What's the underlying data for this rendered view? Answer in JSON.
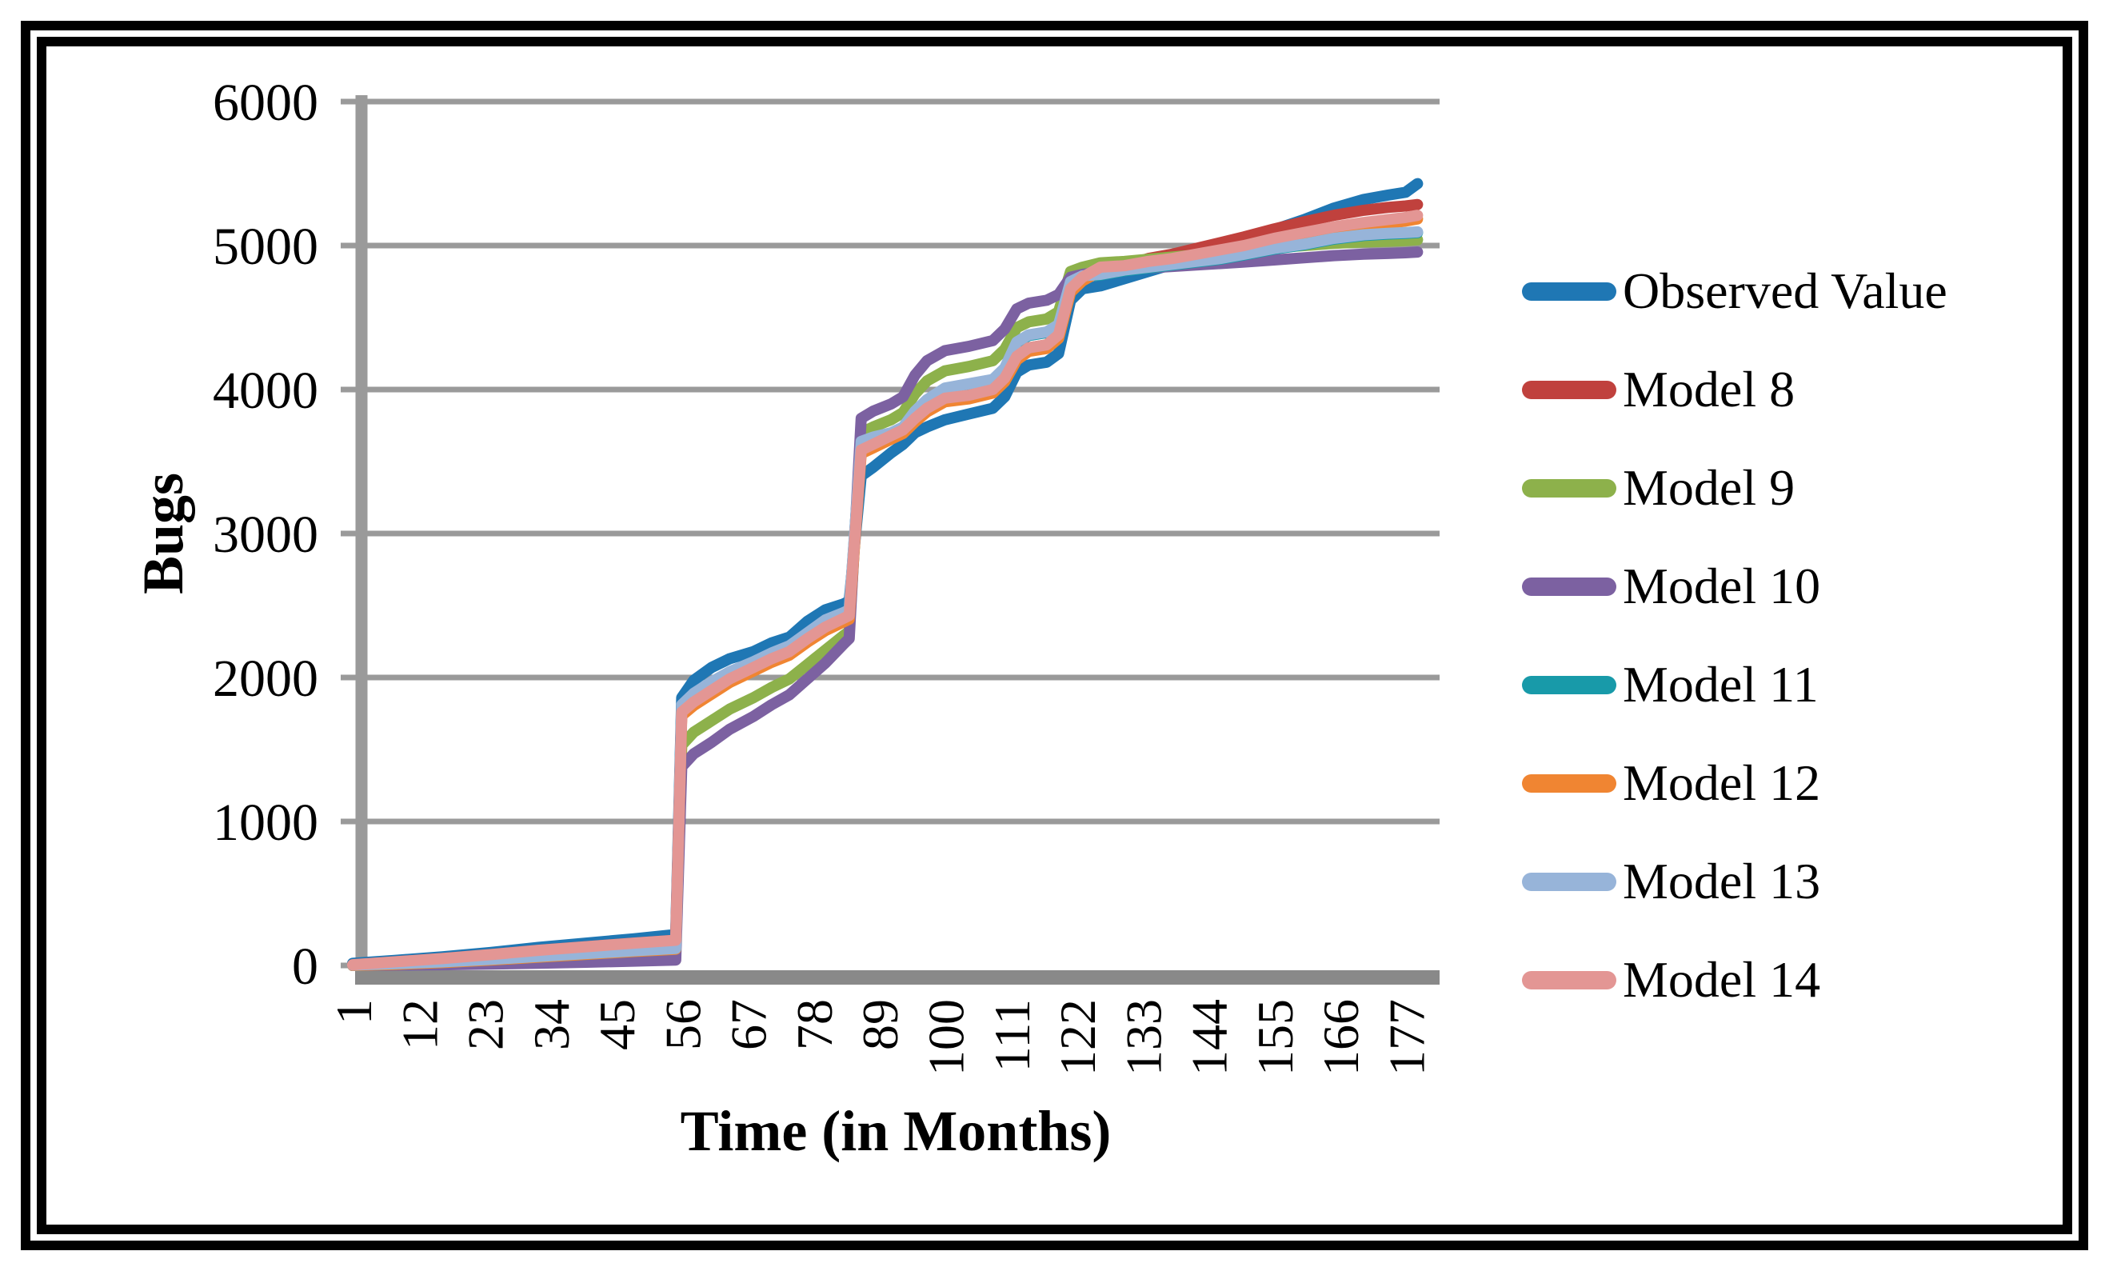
{
  "chart_data": {
    "type": "line",
    "title": "",
    "xlabel": "Time (in Months)",
    "ylabel": "Bugs",
    "x_ticks": [
      1,
      12,
      23,
      34,
      45,
      56,
      67,
      78,
      89,
      100,
      111,
      122,
      133,
      144,
      155,
      166,
      177
    ],
    "y_ticks": [
      0,
      1000,
      2000,
      3000,
      4000,
      5000,
      6000
    ],
    "xlim": [
      1,
      180
    ],
    "ylim": [
      0,
      6000
    ],
    "grid": "horizontal-only",
    "legend_position": "right",
    "colors": {
      "gridline": "#9a9a9a",
      "y_axis_line": "#9a9a9a",
      "x_axis_bar": "#898989",
      "text": "#000000"
    },
    "months": [
      1,
      8,
      16,
      24,
      32,
      40,
      48,
      55,
      56,
      58,
      61,
      64,
      68,
      71,
      74,
      77,
      80,
      83,
      84,
      86,
      88,
      91,
      93,
      95,
      97,
      100,
      104,
      108,
      110,
      112,
      114,
      117,
      119,
      121,
      123,
      126,
      130,
      134,
      138,
      142,
      146,
      150,
      155,
      160,
      165,
      170,
      174,
      177,
      179
    ],
    "series": [
      {
        "name": "Observed Value",
        "color": "#1f77b4",
        "values": [
          15,
          35,
          60,
          90,
          125,
          155,
          185,
          215,
          1860,
          1980,
          2070,
          2130,
          2180,
          2240,
          2280,
          2390,
          2470,
          2510,
          2530,
          3400,
          3460,
          3560,
          3620,
          3700,
          3740,
          3790,
          3830,
          3870,
          3950,
          4120,
          4170,
          4190,
          4250,
          4620,
          4700,
          4720,
          4770,
          4820,
          4870,
          4940,
          4990,
          5040,
          5110,
          5180,
          5260,
          5320,
          5350,
          5370,
          5430
        ]
      },
      {
        "name": "Model 8",
        "color": "#c0413d",
        "values": [
          5,
          25,
          48,
          75,
          105,
          130,
          155,
          175,
          1760,
          1830,
          1910,
          1990,
          2070,
          2130,
          2180,
          2270,
          2350,
          2410,
          2430,
          3580,
          3620,
          3680,
          3720,
          3800,
          3870,
          3940,
          3960,
          4000,
          4080,
          4230,
          4290,
          4310,
          4380,
          4700,
          4780,
          4850,
          4860,
          4910,
          4940,
          4980,
          5020,
          5060,
          5115,
          5165,
          5210,
          5245,
          5265,
          5275,
          5285
        ]
      },
      {
        "name": "Model 9",
        "color": "#8db14b",
        "values": [
          2,
          10,
          22,
          38,
          58,
          78,
          98,
          115,
          1530,
          1620,
          1700,
          1780,
          1860,
          1930,
          1990,
          2090,
          2190,
          2290,
          2320,
          3700,
          3740,
          3790,
          3840,
          3970,
          4060,
          4130,
          4160,
          4200,
          4280,
          4430,
          4470,
          4490,
          4540,
          4820,
          4850,
          4880,
          4890,
          4905,
          4920,
          4935,
          4950,
          4965,
          4985,
          5000,
          5015,
          5025,
          5030,
          5035,
          5040
        ]
      },
      {
        "name": "Model 10",
        "color": "#7c61a1",
        "values": [
          0,
          2,
          5,
          10,
          15,
          22,
          30,
          38,
          1380,
          1470,
          1550,
          1640,
          1730,
          1810,
          1880,
          1990,
          2100,
          2230,
          2270,
          3800,
          3850,
          3900,
          3950,
          4100,
          4200,
          4270,
          4300,
          4340,
          4420,
          4560,
          4600,
          4620,
          4660,
          4780,
          4800,
          4815,
          4830,
          4845,
          4855,
          4865,
          4875,
          4885,
          4900,
          4915,
          4930,
          4940,
          4945,
          4950,
          4955
        ]
      },
      {
        "name": "Model 11",
        "color": "#189aa9",
        "values": [
          0,
          7,
          20,
          37,
          57,
          77,
          97,
          113,
          1805,
          1885,
          1965,
          2035,
          2105,
          2165,
          2215,
          2305,
          2395,
          2445,
          2465,
          3635,
          3665,
          3695,
          3735,
          3845,
          3925,
          4005,
          4035,
          4065,
          4145,
          4325,
          4375,
          4395,
          4445,
          4745,
          4785,
          4795,
          4825,
          4845,
          4865,
          4885,
          4905,
          4935,
          4975,
          5005,
          5045,
          5070,
          5080,
          5085,
          5090
        ]
      },
      {
        "name": "Model 12",
        "color": "#f08532",
        "values": [
          0,
          7,
          20,
          37,
          57,
          77,
          97,
          113,
          1735,
          1805,
          1885,
          1965,
          2045,
          2105,
          2155,
          2245,
          2325,
          2385,
          2405,
          3555,
          3595,
          3655,
          3695,
          3775,
          3845,
          3915,
          3935,
          3975,
          4055,
          4205,
          4265,
          4285,
          4355,
          4675,
          4755,
          4825,
          4835,
          4865,
          4885,
          4915,
          4945,
          4975,
          5025,
          5065,
          5105,
          5135,
          5155,
          5170,
          5185
        ]
      },
      {
        "name": "Model 13",
        "color": "#97b4d9",
        "values": [
          3,
          12,
          25,
          42,
          62,
          82,
          102,
          118,
          1810,
          1890,
          1970,
          2040,
          2110,
          2170,
          2220,
          2310,
          2400,
          2450,
          2470,
          3640,
          3670,
          3700,
          3740,
          3850,
          3930,
          4010,
          4040,
          4070,
          4150,
          4330,
          4380,
          4400,
          4450,
          4750,
          4790,
          4800,
          4830,
          4850,
          4870,
          4890,
          4910,
          4940,
          4980,
          5010,
          5050,
          5075,
          5085,
          5090,
          5095
        ]
      },
      {
        "name": "Model 14",
        "color": "#e39694",
        "values": [
          5,
          25,
          48,
          75,
          105,
          130,
          155,
          175,
          1760,
          1830,
          1910,
          1990,
          2070,
          2130,
          2180,
          2270,
          2350,
          2410,
          2430,
          3580,
          3620,
          3680,
          3720,
          3800,
          3870,
          3940,
          3960,
          4000,
          4080,
          4230,
          4290,
          4310,
          4380,
          4700,
          4780,
          4850,
          4860,
          4890,
          4910,
          4940,
          4970,
          5000,
          5050,
          5090,
          5130,
          5160,
          5180,
          5195,
          5210
        ]
      }
    ]
  }
}
